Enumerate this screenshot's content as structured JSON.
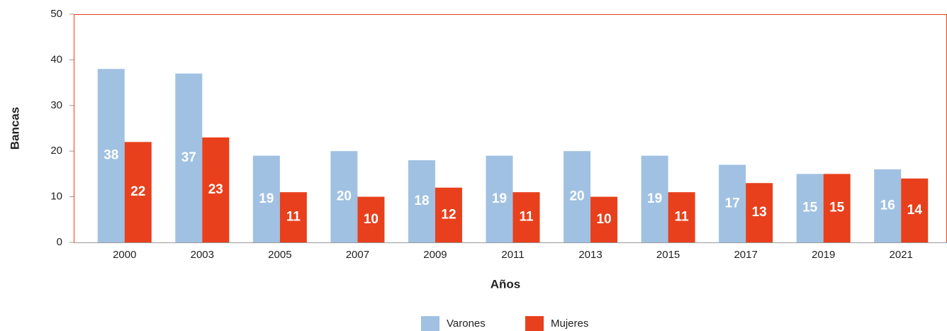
{
  "chart_data": {
    "type": "bar",
    "categories": [
      "2000",
      "2003",
      "2005",
      "2007",
      "2009",
      "2011",
      "2013",
      "2015",
      "2017",
      "2019",
      "2021"
    ],
    "series": [
      {
        "name": "Varones",
        "color": "#a0c1e2",
        "values": [
          38,
          37,
          19,
          20,
          18,
          19,
          20,
          19,
          17,
          15,
          16
        ]
      },
      {
        "name": "Mujeres",
        "color": "#e8401c",
        "values": [
          22,
          23,
          11,
          10,
          12,
          11,
          10,
          11,
          13,
          15,
          14
        ]
      }
    ],
    "xlabel": "Años",
    "ylabel": "Bancas",
    "ylim": [
      0,
      50
    ],
    "yticks": [
      0,
      10,
      20,
      30,
      40,
      50
    ],
    "legend": "bottom"
  }
}
